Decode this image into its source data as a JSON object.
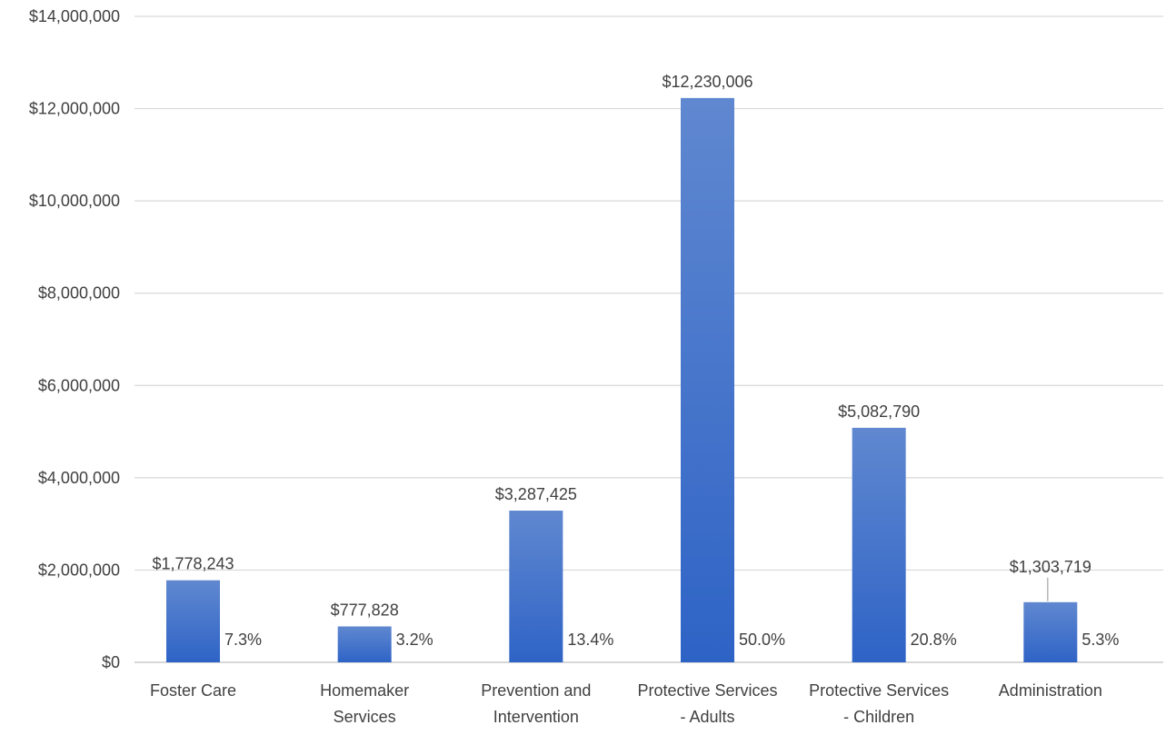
{
  "chart_data": {
    "type": "bar",
    "title": "",
    "xlabel": "",
    "ylabel": "",
    "ylim": [
      0,
      14000000
    ],
    "y_ticks": [
      0,
      2000000,
      4000000,
      6000000,
      8000000,
      10000000,
      12000000,
      14000000
    ],
    "y_tick_labels": [
      "$0",
      "$2,000,000",
      "$4,000,000",
      "$6,000,000",
      "$8,000,000",
      "$10,000,000",
      "$12,000,000",
      "$14,000,000"
    ],
    "grid": true,
    "categories": [
      [
        "Foster Care"
      ],
      [
        "Homemaker",
        "Services"
      ],
      [
        "Prevention and",
        "Intervention"
      ],
      [
        "Protective Services",
        "- Adults"
      ],
      [
        "Protective Services",
        "- Children"
      ],
      [
        "Administration"
      ]
    ],
    "values": [
      1778243,
      777828,
      3287425,
      12230006,
      5082790,
      1303719
    ],
    "value_labels": [
      "$1,778,243",
      "$777,828",
      "$3,287,425",
      "$12,230,006",
      "$5,082,790",
      "$1,303,719"
    ],
    "percent_labels": [
      "7.3%",
      "3.2%",
      "13.4%",
      "50.0%",
      "20.8%",
      "5.3%"
    ],
    "colors": {
      "bar_top": "#6088d0",
      "bar_bottom": "#2e63c6",
      "grid": "#d9d9d9",
      "axis": "#bfbfbf",
      "text": "#404040",
      "leader": "#a6a6a6"
    }
  }
}
